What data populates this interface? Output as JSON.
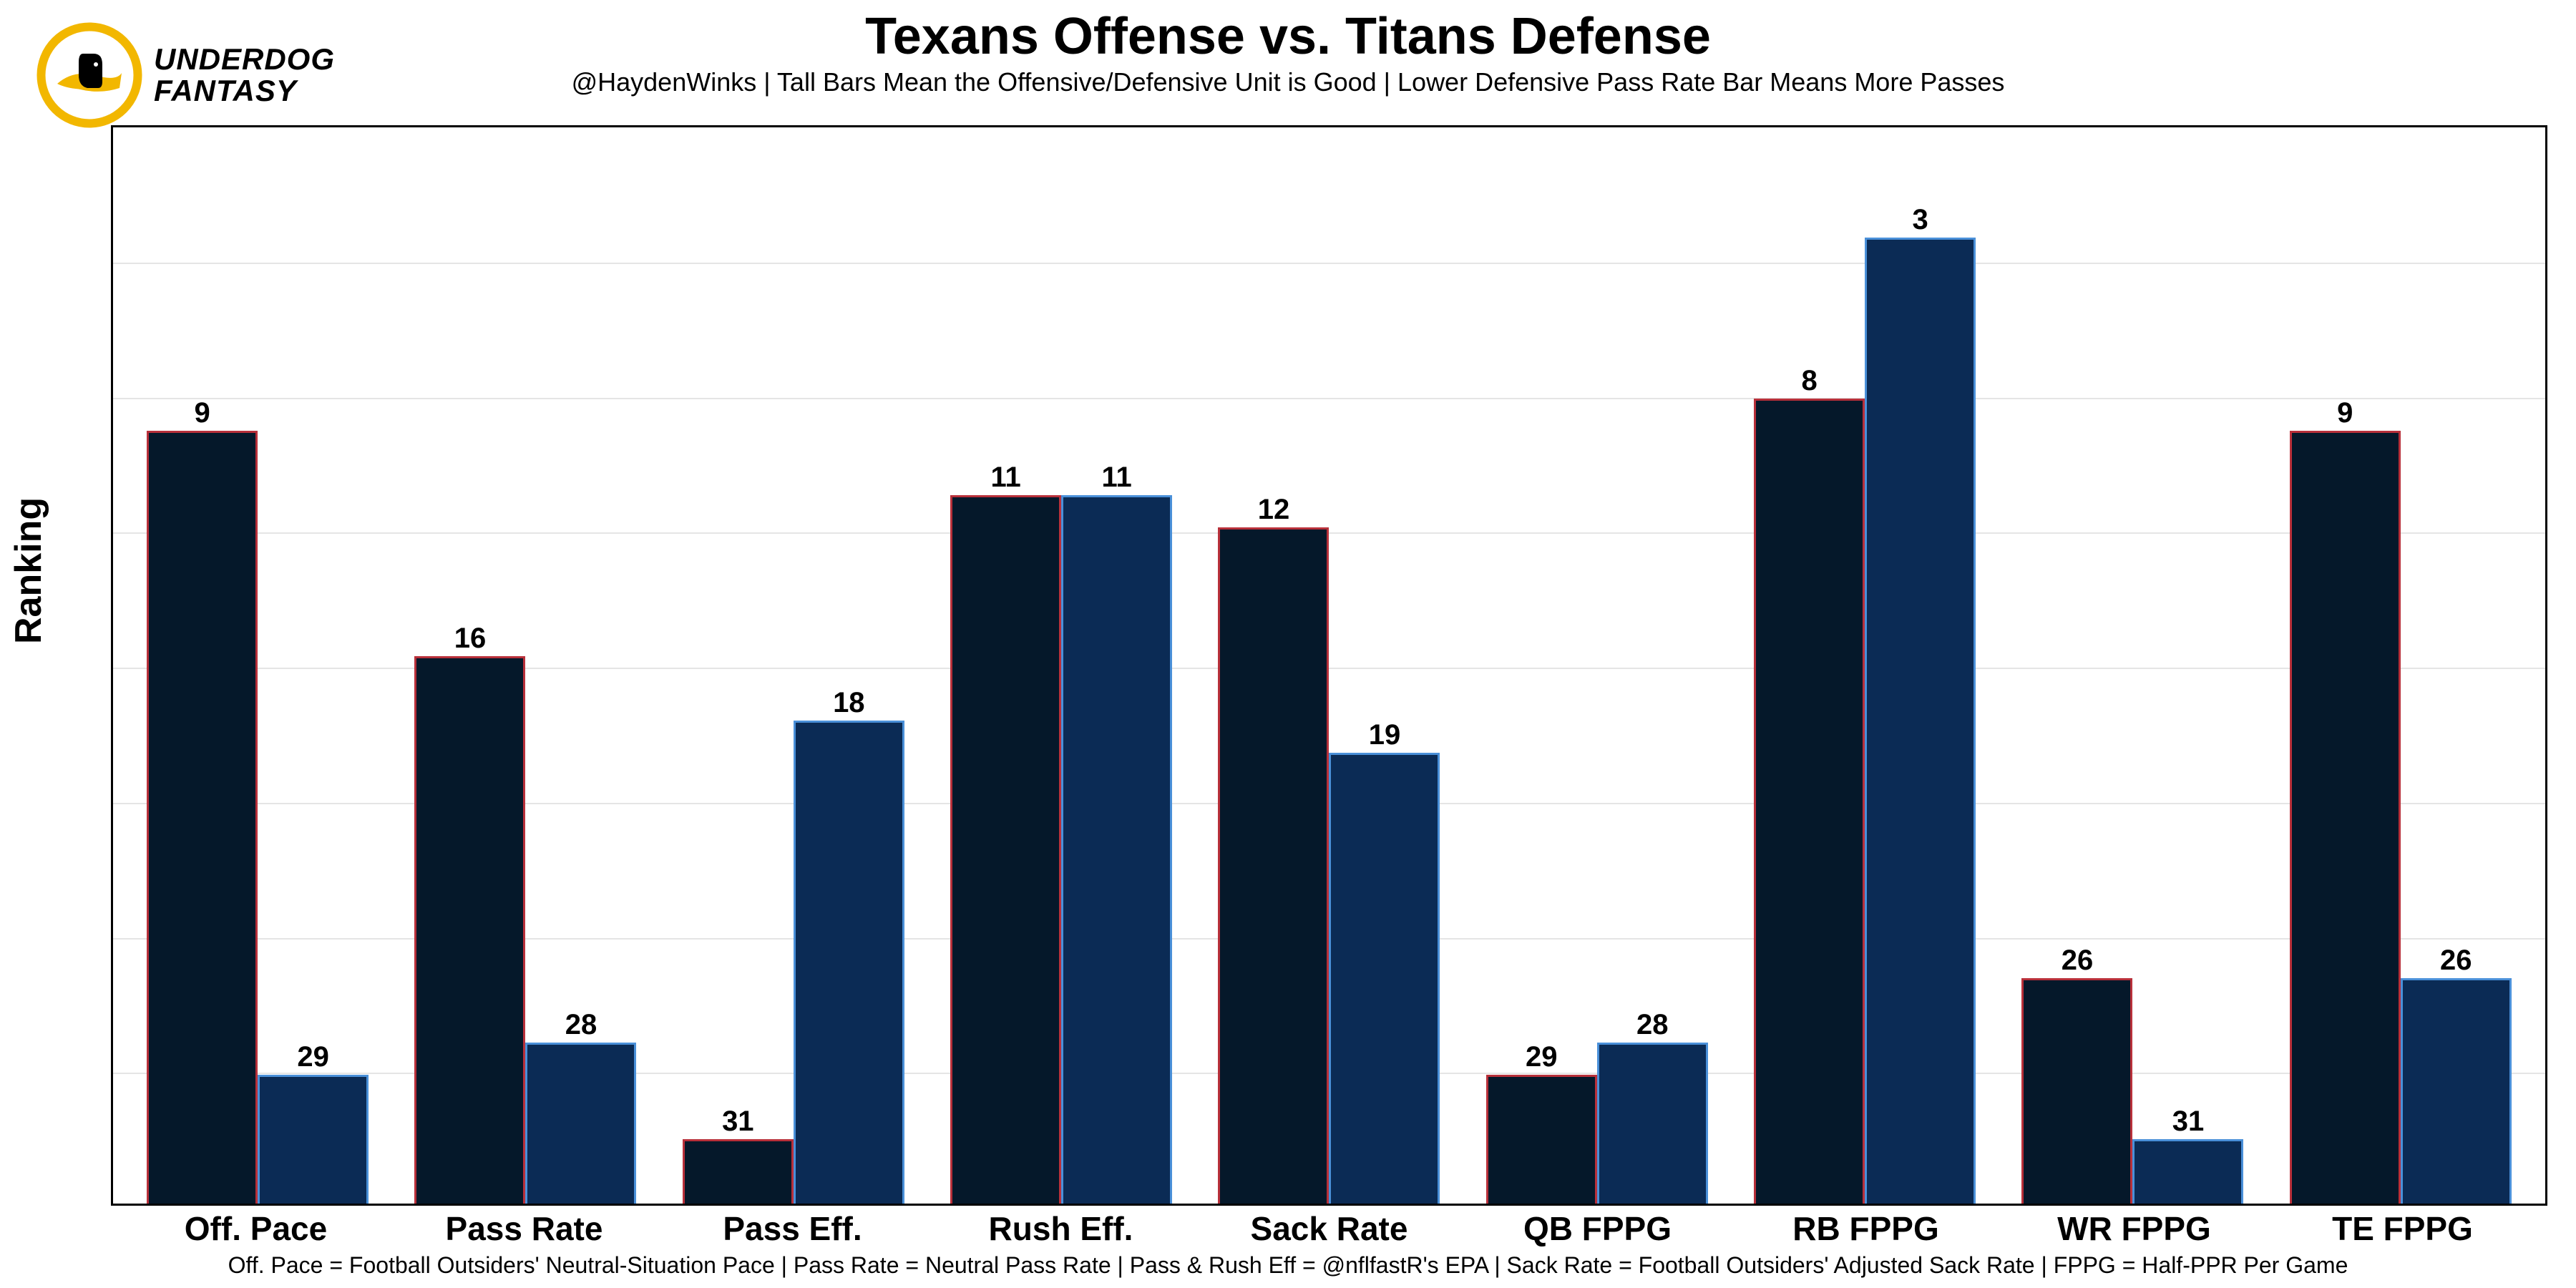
{
  "logo": {
    "line1": "UNDERDOG",
    "line2": "FANTASY",
    "circle_color": "#f2b700",
    "dog_color": "#000000",
    "cape_color": "#f2b700"
  },
  "title": "Texans Offense vs. Titans Defense",
  "subtitle": "@HaydenWinks | Tall Bars Mean the Offensive/Defensive Unit is Good | Lower Defensive Pass Rate Bar Means More Passes",
  "ylabel": "Ranking",
  "footnote": "Off. Pace = Football Outsiders' Neutral-Situation Pace | Pass Rate = Neutral Pass Rate | Pass & Rush Eff = @nflfastR's EPA | Sack Rate = Football Outsiders' Adjusted Sack Rate | FPPG = Half-PPR Per Game",
  "chart": {
    "type": "bar",
    "rank_max": 32,
    "rank_min": 1,
    "bar_height_scale": 45,
    "grid_rows": 8,
    "background_color": "#ffffff",
    "grid_color": "#e5e5e5",
    "border_color": "#000000",
    "label_fontsize": 40,
    "xlabel_fontsize": 46,
    "categories": [
      {
        "label": "Off. Pace",
        "offense": 9,
        "defense": 29
      },
      {
        "label": "Pass Rate",
        "offense": 16,
        "defense": 28
      },
      {
        "label": "Pass Eff.",
        "offense": 31,
        "defense": 18
      },
      {
        "label": "Rush Eff.",
        "offense": 11,
        "defense": 11
      },
      {
        "label": "Sack Rate",
        "offense": 12,
        "defense": 19
      },
      {
        "label": "QB FPPG",
        "offense": 29,
        "defense": 28
      },
      {
        "label": "RB FPPG",
        "offense": 8,
        "defense": 3
      },
      {
        "label": "WR FPPG",
        "offense": 26,
        "defense": 31
      },
      {
        "label": "TE FPPG",
        "offense": 9,
        "defense": 26
      }
    ],
    "series": {
      "offense": {
        "fill": "#05182a",
        "stroke": "#b8303a"
      },
      "defense": {
        "fill": "#0b2b55",
        "stroke": "#4a90d9"
      }
    }
  }
}
